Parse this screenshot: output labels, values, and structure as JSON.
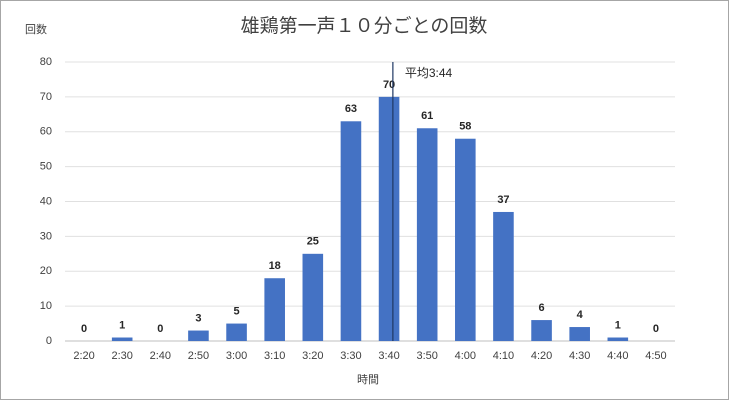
{
  "chart_data": {
    "type": "bar",
    "title": "雄鶏第一声１０分ごとの回数",
    "y_label": "回数",
    "x_label": "時間",
    "annotation": "平均3:44",
    "categories": [
      "2:20",
      "2:30",
      "2:40",
      "2:50",
      "3:00",
      "3:10",
      "3:20",
      "3:30",
      "3:40",
      "3:50",
      "4:00",
      "4:10",
      "4:20",
      "4:30",
      "4:40",
      "4:50"
    ],
    "values": [
      0,
      1,
      0,
      3,
      5,
      18,
      25,
      63,
      70,
      61,
      58,
      37,
      6,
      4,
      1,
      0
    ],
    "color": "#4472c4",
    "ylim": [
      0,
      80
    ],
    "yticks": [
      0,
      10,
      20,
      30,
      40,
      50,
      60,
      70,
      80
    ],
    "grid": true
  }
}
